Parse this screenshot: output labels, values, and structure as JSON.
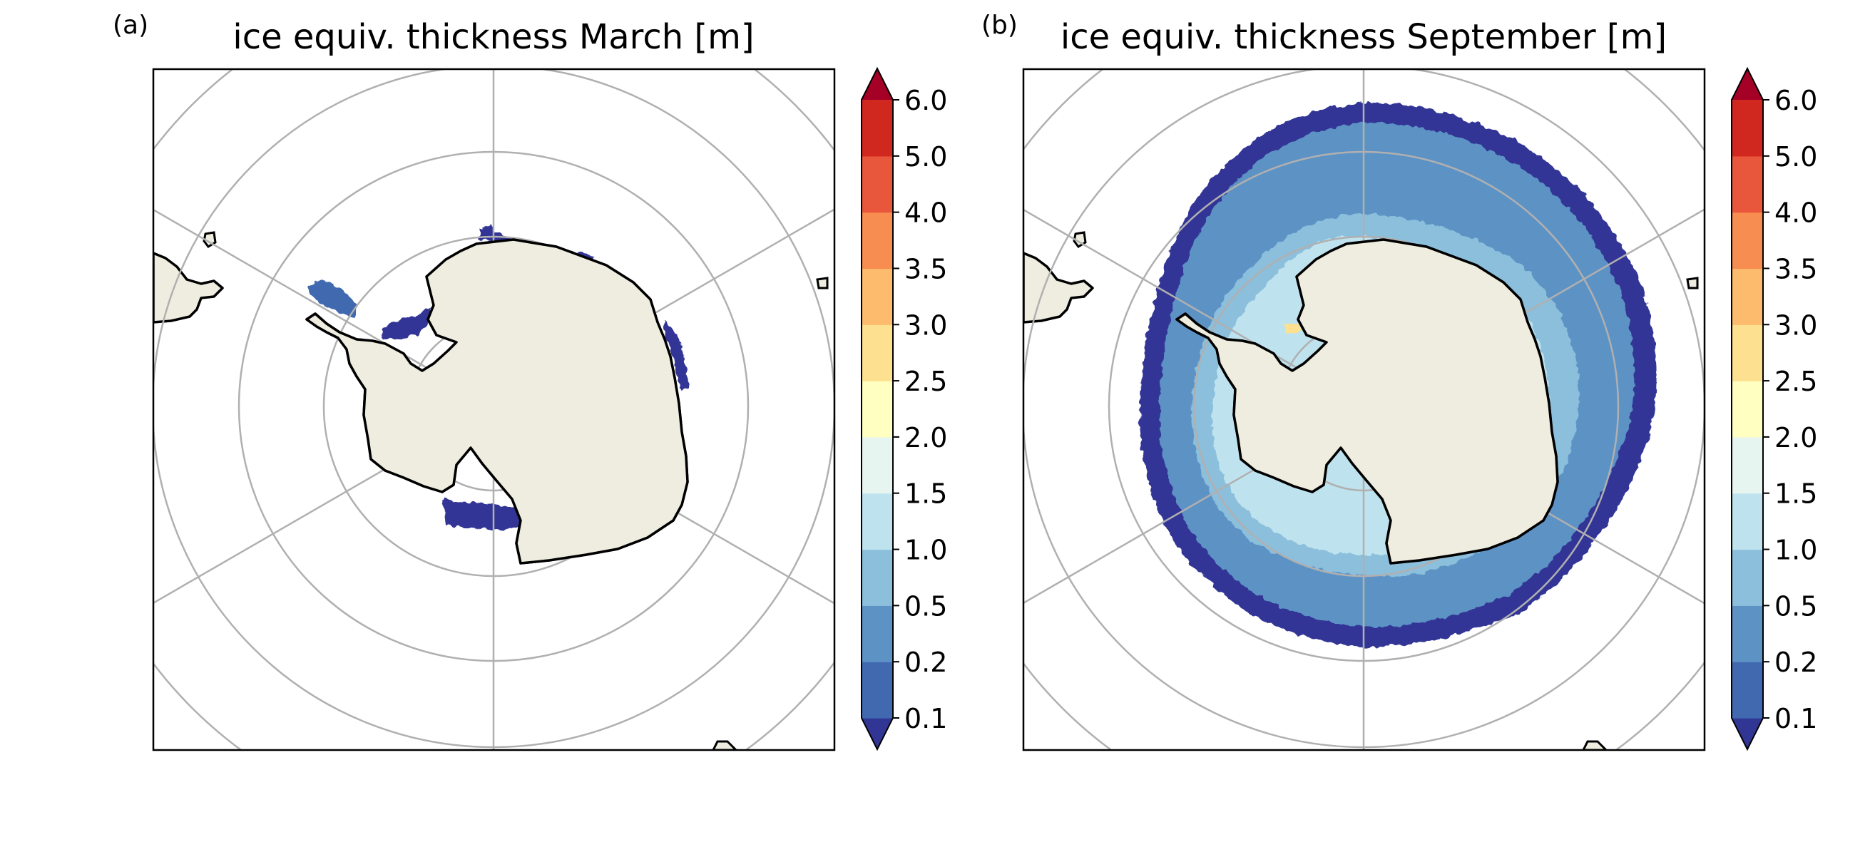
{
  "colorbar_ticks": [
    "0.1",
    "0.2",
    "0.5",
    "1.0",
    "1.5",
    "2.0",
    "2.5",
    "3.0",
    "3.5",
    "4.0",
    "5.0",
    "6.0"
  ],
  "colorbar_colors": [
    "#313695",
    "#4169af",
    "#5d92c5",
    "#8bbfdc",
    "#bfe3ee",
    "#e7f5f0",
    "#feffc0",
    "#fee190",
    "#fdbb6d",
    "#f88d51",
    "#e8573b",
    "#d0271f",
    "#a50026"
  ],
  "panels": [
    {
      "tag": "(a)",
      "title": "ice equiv. thickness March [m]",
      "month": "March"
    },
    {
      "tag": "(b)",
      "title": "ice equiv. thickness September [m]",
      "month": "September"
    }
  ],
  "style": {
    "land_color": "#efeddf",
    "grid_color": "#b0b0b0",
    "coast_color": "#000000"
  }
}
